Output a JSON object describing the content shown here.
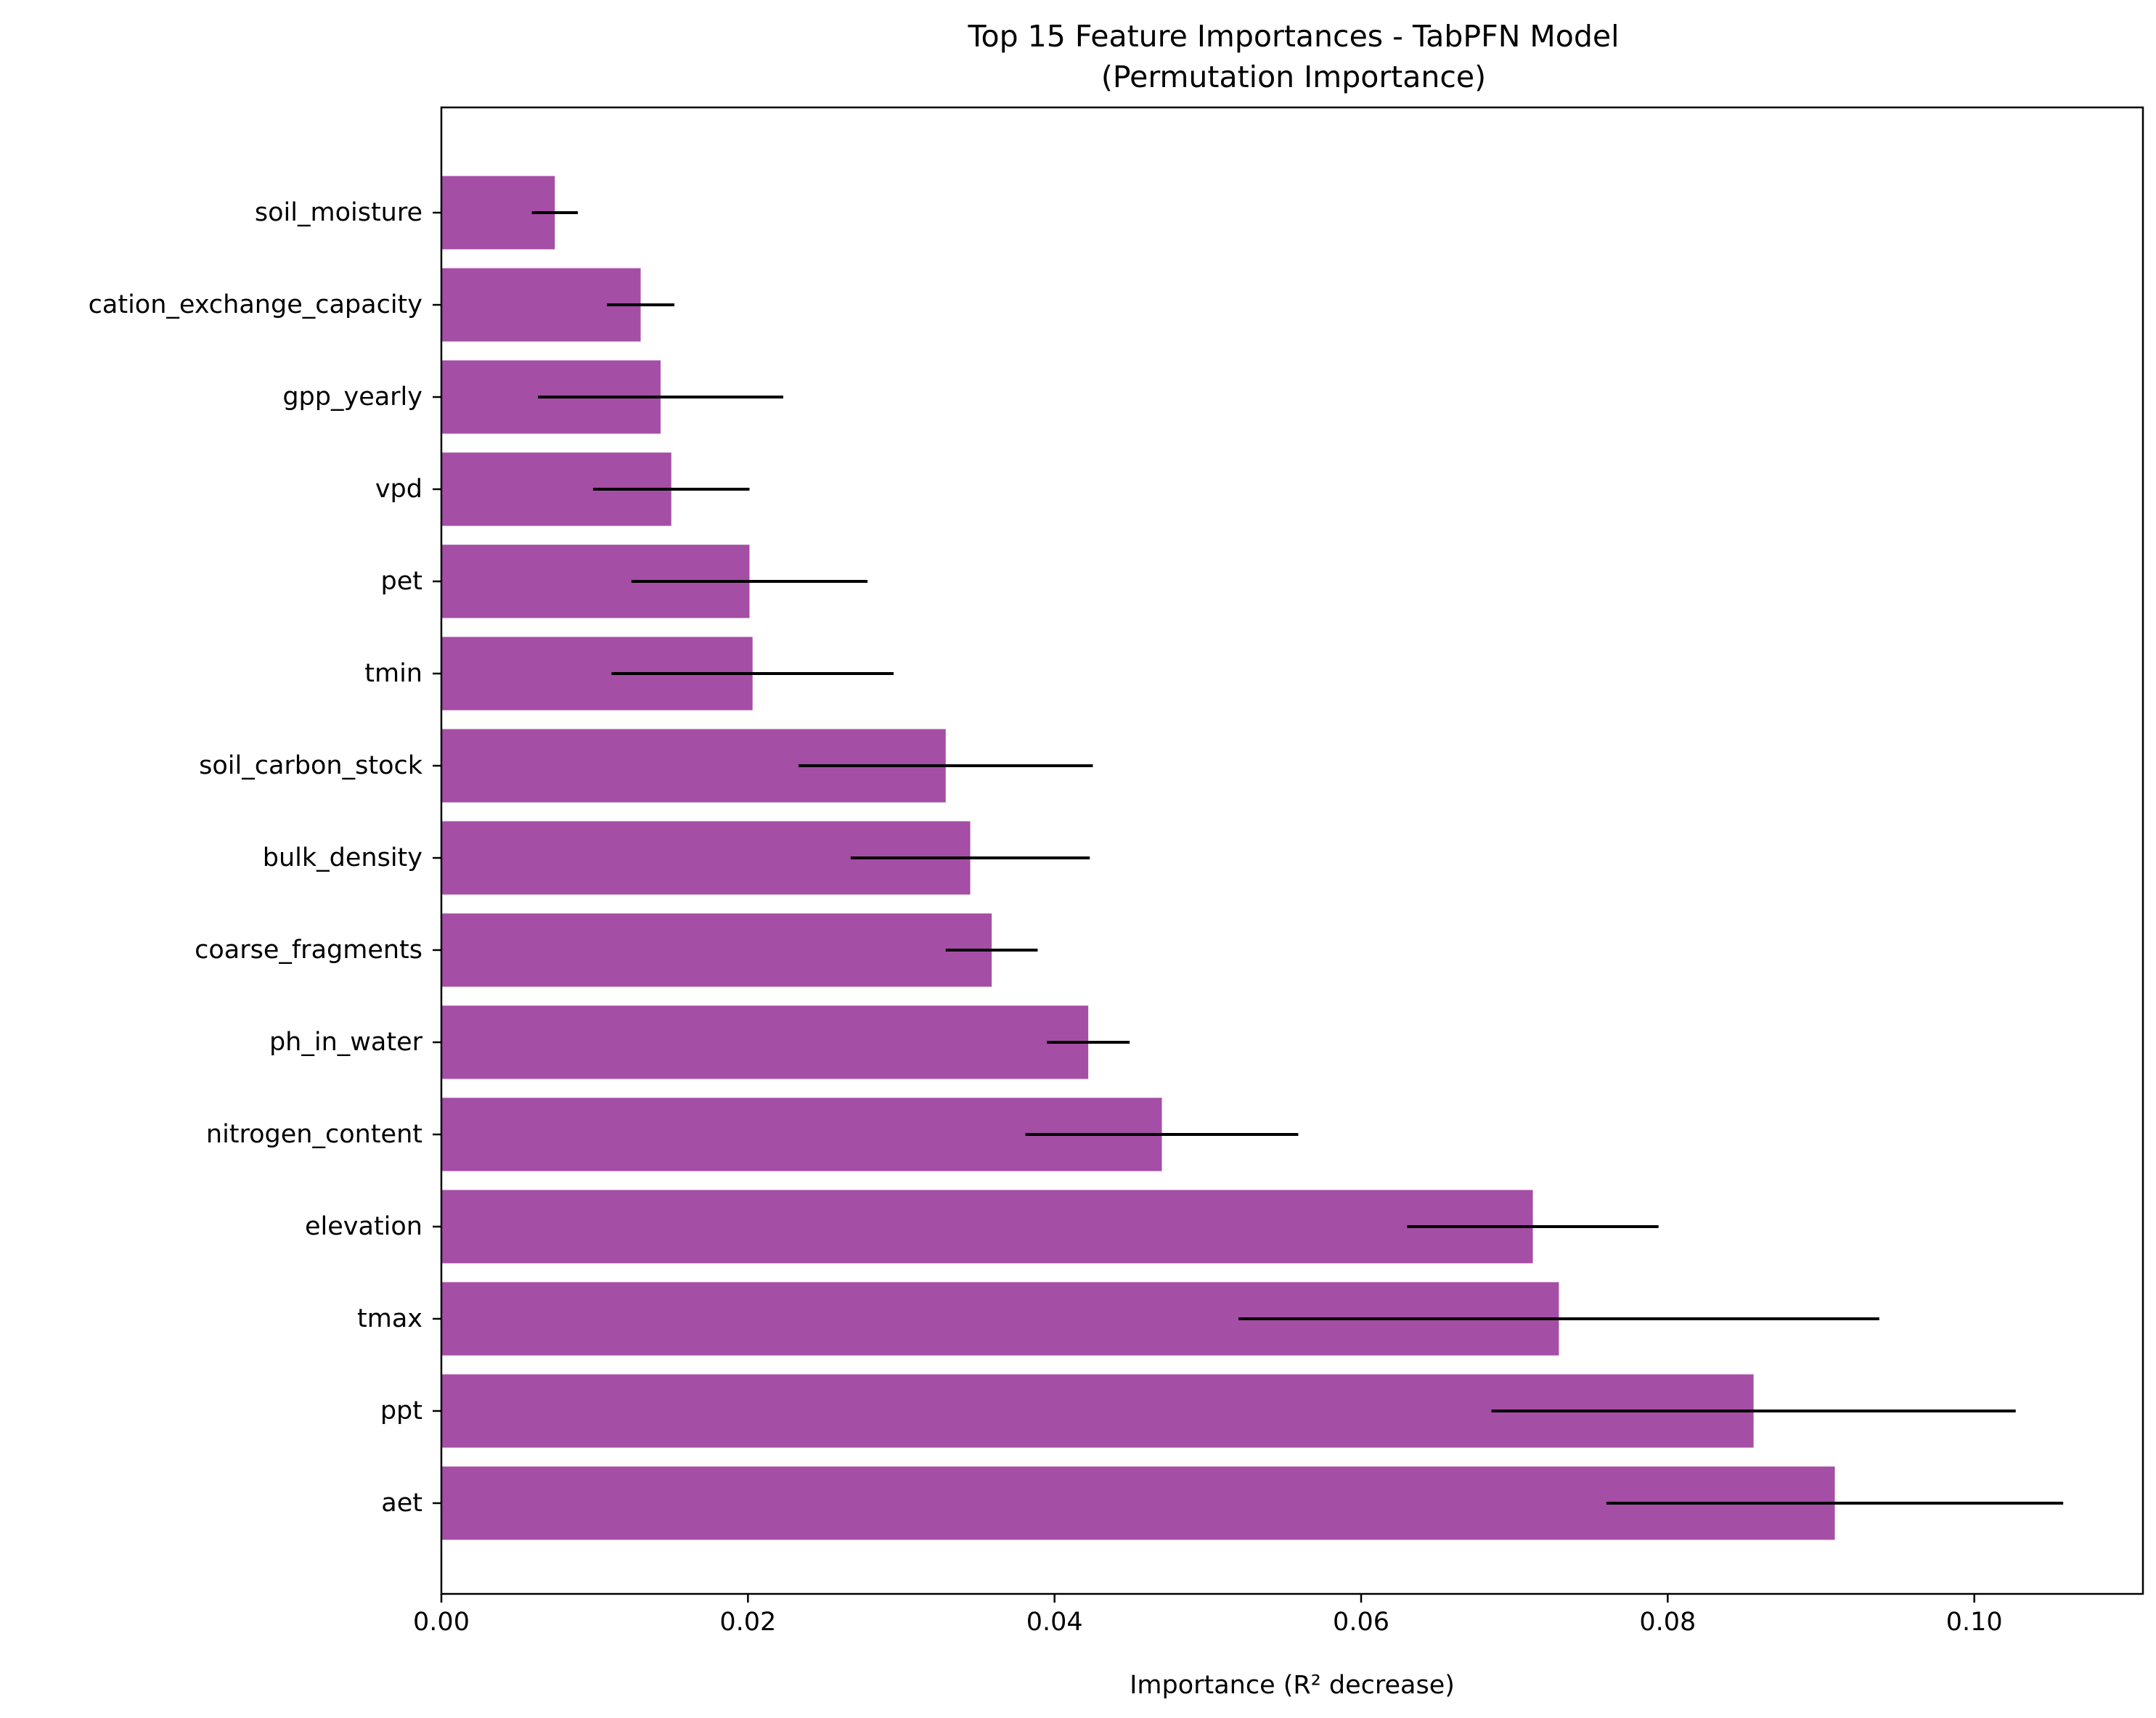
{
  "chart_data": {
    "type": "bar",
    "orientation": "horizontal",
    "title": "Top 15 Feature Importances - TabPFN Model",
    "subtitle": "(Permutation Importance)",
    "xlabel": "Importance (R² decrease)",
    "ylabel": "",
    "xlim": [
      0,
      0.111
    ],
    "xticks": [
      0.0,
      0.02,
      0.04,
      0.06,
      0.08,
      0.1
    ],
    "xtick_labels": [
      "0.00",
      "0.02",
      "0.04",
      "0.06",
      "0.08",
      "0.10"
    ],
    "grid": false,
    "bar_color": "#a54ea5",
    "error_bar_color": "#000000",
    "categories": [
      "soil_moisture",
      "cation_exchange_capacity",
      "gpp_yearly",
      "vpd",
      "pet",
      "tmin",
      "soil_carbon_stock",
      "bulk_density",
      "coarse_fragments",
      "ph_in_water",
      "nitrogen_content",
      "elevation",
      "tmax",
      "ppt",
      "aet"
    ],
    "values": [
      0.0074,
      0.013,
      0.0143,
      0.015,
      0.0201,
      0.0203,
      0.0329,
      0.0345,
      0.0359,
      0.0422,
      0.047,
      0.0712,
      0.0729,
      0.0856,
      0.0909
    ],
    "errors": [
      0.0015,
      0.0022,
      0.008,
      0.0051,
      0.0077,
      0.0092,
      0.0096,
      0.0078,
      0.003,
      0.0027,
      0.0089,
      0.0082,
      0.0209,
      0.0171,
      0.0149
    ]
  }
}
